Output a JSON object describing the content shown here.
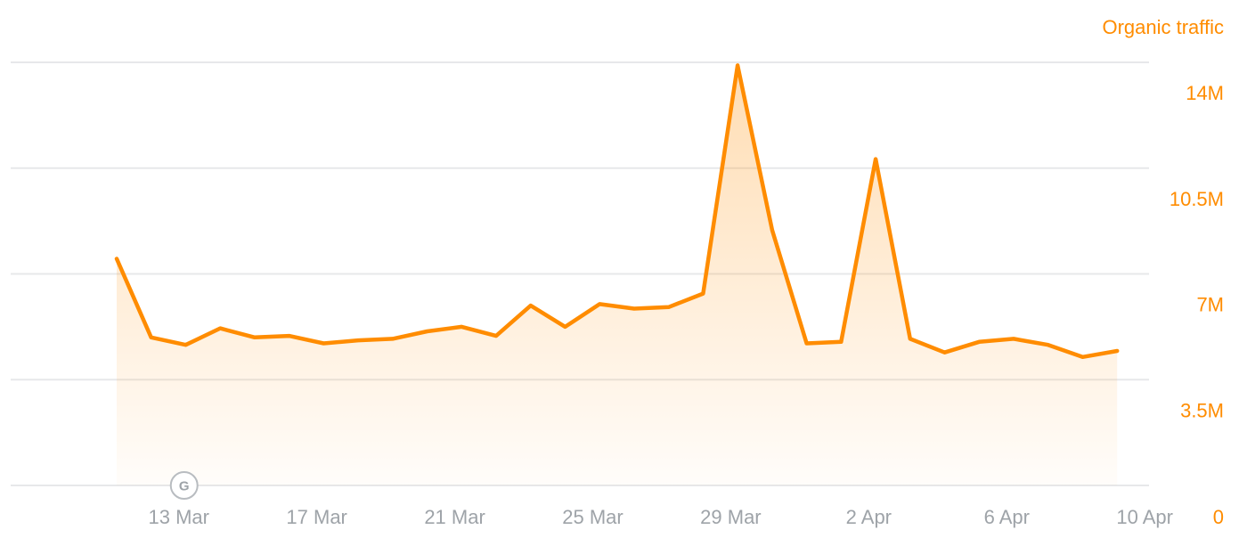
{
  "chart_data": {
    "type": "area",
    "series": [
      {
        "name": "Organic traffic",
        "color": "#ff8c00",
        "x": [
          "12 Mar",
          "13 Mar",
          "14 Mar",
          "15 Mar",
          "16 Mar",
          "17 Mar",
          "18 Mar",
          "19 Mar",
          "20 Mar",
          "21 Mar",
          "22 Mar",
          "23 Mar",
          "24 Mar",
          "25 Mar",
          "26 Mar",
          "27 Mar",
          "28 Mar",
          "29 Mar",
          "30 Mar",
          "31 Mar",
          "1 Apr",
          "2 Apr",
          "3 Apr",
          "4 Apr",
          "5 Apr",
          "6 Apr",
          "7 Apr",
          "8 Apr",
          "9 Apr",
          "10 Apr"
        ],
        "values": [
          7.5,
          4.9,
          4.65,
          5.2,
          4.9,
          4.95,
          4.7,
          4.8,
          4.85,
          5.1,
          5.25,
          4.95,
          5.95,
          5.25,
          6.0,
          5.85,
          5.9,
          6.35,
          13.9,
          8.45,
          4.7,
          4.75,
          10.8,
          4.85,
          4.4,
          4.75,
          4.85,
          4.65,
          4.25,
          4.45
        ]
      }
    ],
    "title": "Organic traffic",
    "y_ticks": [
      "0",
      "3.5M",
      "7M",
      "10.5M",
      "14M"
    ],
    "x_ticks": [
      "13 Mar",
      "17 Mar",
      "21 Mar",
      "25 Mar",
      "29 Mar",
      "2 Apr",
      "6 Apr",
      "10 Apr"
    ],
    "ylim": [
      0,
      14
    ],
    "y_unit": "M",
    "grid": true,
    "fill_area": true,
    "annotations": [
      {
        "x": "13 Mar",
        "label": "G",
        "icon": "google-update-marker-icon"
      }
    ]
  }
}
